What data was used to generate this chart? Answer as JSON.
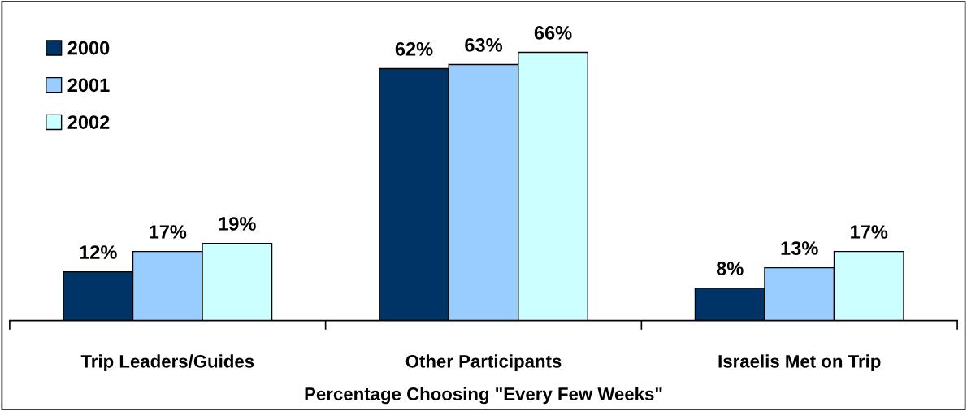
{
  "chart_data": {
    "type": "bar",
    "xlabel": "Percentage Choosing \"Every Few Weeks\"",
    "categories": [
      "Trip Leaders/Guides",
      "Other Participants",
      "Israelis Met on Trip"
    ],
    "series": [
      {
        "name": "2000",
        "color": "#003366",
        "values": [
          12,
          62,
          8
        ],
        "value_labels": [
          "12%",
          "62%",
          "8%"
        ]
      },
      {
        "name": "2001",
        "color": "#99ccff",
        "values": [
          17,
          63,
          13
        ],
        "value_labels": [
          "17%",
          "63%",
          "13%"
        ]
      },
      {
        "name": "2002",
        "color": "#ccffff",
        "values": [
          19,
          66,
          17
        ],
        "value_labels": [
          "19%",
          "66%",
          "17%"
        ]
      }
    ],
    "legend": "top left",
    "grid": false
  }
}
